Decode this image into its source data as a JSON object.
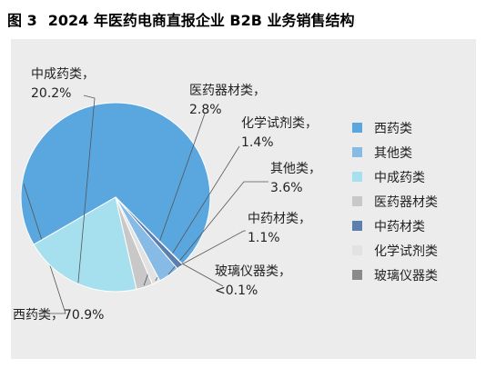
{
  "figure": {
    "number": "图 3",
    "title": "2024 年医药电商直报企业 B2B 业务销售结构"
  },
  "chart_data": {
    "type": "pie",
    "title": "2024 年医药电商直报企业 B2B 业务销售结构",
    "unit": "%",
    "legend_position": "right",
    "slices": [
      {
        "name": "西药类",
        "value": 70.9,
        "label": "70.9%",
        "color": "#5aa7e0",
        "callout": [
          "西药类，70.9%"
        ]
      },
      {
        "name": "其他类",
        "value": 3.6,
        "label": "3.6%",
        "color": "#87bbe6",
        "callout": [
          "其他类，",
          "3.6%"
        ]
      },
      {
        "name": "中成药类",
        "value": 20.2,
        "label": "20.2%",
        "color": "#a6e0ef",
        "callout": [
          "中成药类，",
          "20.2%"
        ]
      },
      {
        "name": "医药器材类",
        "value": 2.8,
        "label": "2.8%",
        "color": "#c8c8c8",
        "callout": [
          "医药器材类，",
          "2.8%"
        ]
      },
      {
        "name": "中药材类",
        "value": 1.1,
        "label": "1.1%",
        "color": "#5b7fae",
        "callout": [
          "中药材类，",
          "1.1%"
        ]
      },
      {
        "name": "化学试剂类",
        "value": 1.4,
        "label": "1.4%",
        "color": "#e2e2e2",
        "callout": [
          "化学试剂类，",
          "1.4%"
        ]
      },
      {
        "name": "玻璃仪器类",
        "value": 0.05,
        "label": "<0.1%",
        "color": "#8a8a8a",
        "callout": [
          "玻璃仪器类，",
          "<0.1%"
        ]
      }
    ],
    "pie_order": [
      "西药类",
      "中成药类",
      "医药器材类",
      "化学试剂类",
      "其他类",
      "中药材类",
      "玻璃仪器类"
    ]
  }
}
